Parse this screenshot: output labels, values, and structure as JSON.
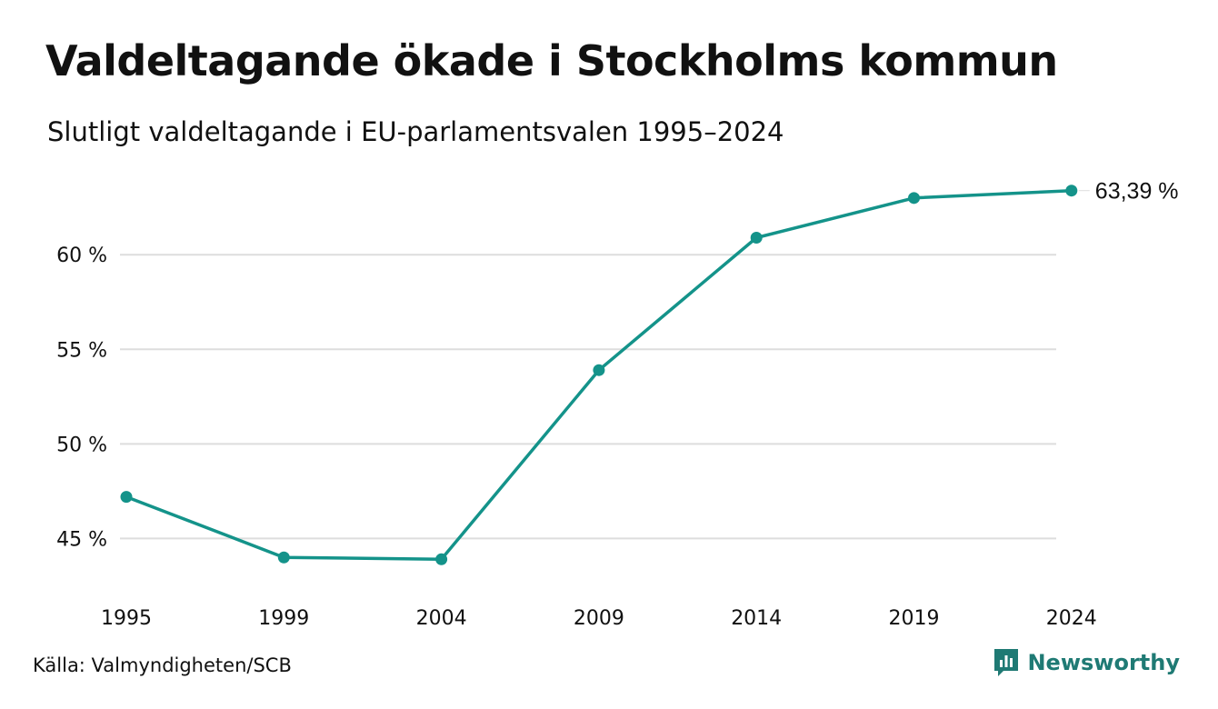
{
  "chart_data": {
    "type": "line",
    "title": "Valdeltagande ökade i Stockholms kommun",
    "subtitle": "Slutligt valdeltagande i EU-parlamentsvalen 1995–2024",
    "categories": [
      "1995",
      "1999",
      "2004",
      "2009",
      "2014",
      "2019",
      "2024"
    ],
    "series": [
      {
        "values": [
          47.2,
          44.0,
          43.9,
          53.9,
          60.9,
          63.0,
          63.39
        ]
      }
    ],
    "yticks": [
      45,
      50,
      55,
      60
    ],
    "ytick_labels": [
      "45 %",
      "50 %",
      "55 %",
      "60 %"
    ],
    "ylim": [
      42.5,
      64.5
    ],
    "end_label": "63,39 %",
    "grid": true,
    "colors": {
      "line": "#14938a",
      "grid": "#dddddd",
      "text": "#111111"
    }
  },
  "footer": {
    "source": "Källa: Valmyndigheten/SCB",
    "brand": "Newsworthy",
    "brand_icon": "newsworthy-logo-icon",
    "brand_color": "#1f7a74"
  }
}
